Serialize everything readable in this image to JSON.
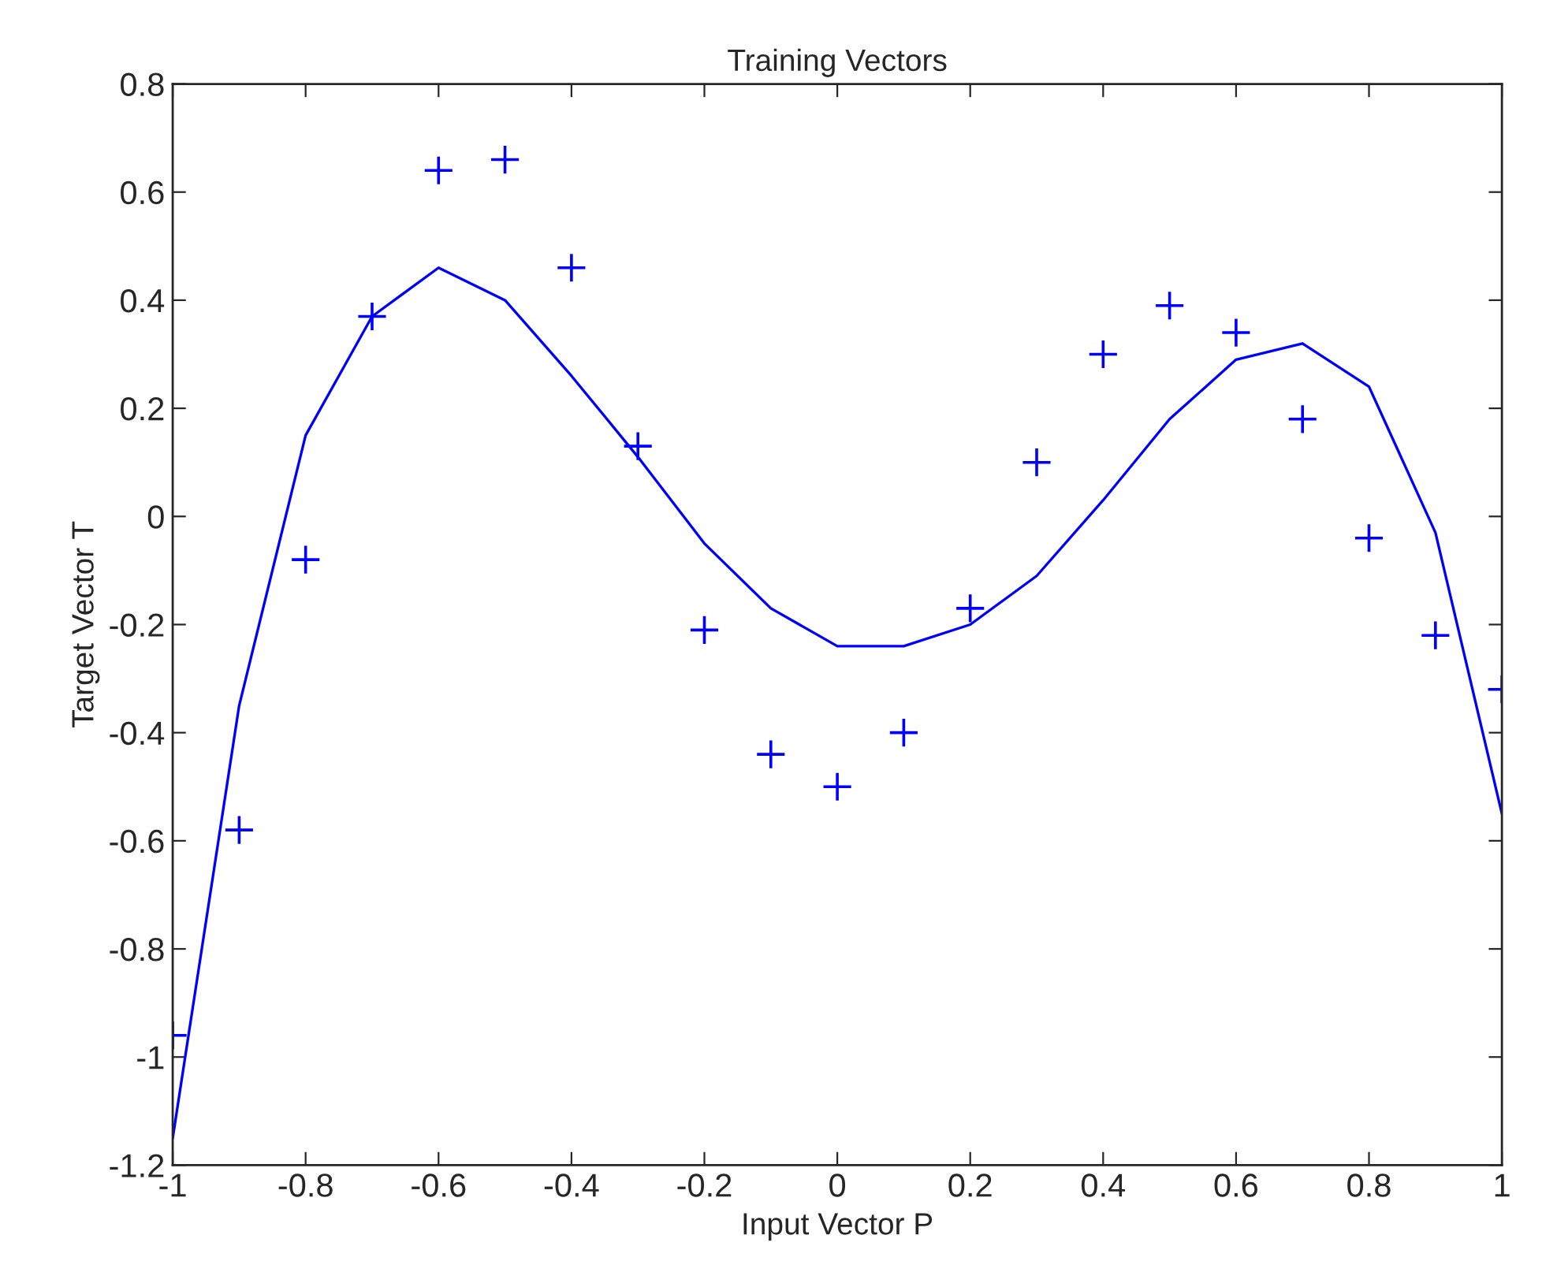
{
  "chart_data": {
    "type": "scatter",
    "title": "Training Vectors",
    "xlabel": "Input Vector P",
    "ylabel": "Target Vector T",
    "x": [
      -1,
      -0.9,
      -0.8,
      -0.7,
      -0.6,
      -0.5,
      -0.4,
      -0.3,
      -0.2,
      -0.1,
      0,
      0.1,
      0.2,
      0.3,
      0.4,
      0.5,
      0.6,
      0.7,
      0.8,
      0.9,
      1
    ],
    "series": [
      {
        "color": "#0000ff",
        "marker": "cross",
        "values": [
          -0.96,
          -0.58,
          -0.08,
          0.37,
          0.64,
          0.66,
          0.46,
          0.13,
          -0.21,
          -0.44,
          -0.5,
          -0.4,
          -0.17,
          0.1,
          0.3,
          0.39,
          0.34,
          0.18,
          -0.04,
          -0.22,
          -0.32
        ]
      },
      {
        "type": "line",
        "color": "#0000ff",
        "marker": "none",
        "values": [
          -1.15,
          -0.35,
          0.15,
          0.37,
          0.46,
          0.4,
          0.26,
          0.11,
          -0.05,
          -0.17,
          -0.24,
          -0.24,
          -0.2,
          -0.11,
          0.03,
          0.18,
          0.29,
          0.32,
          0.24,
          -0.03,
          -0.55
        ]
      }
    ],
    "xlim": [
      -1,
      1
    ],
    "xticks": [
      -1,
      -0.8,
      -0.6,
      -0.4,
      -0.2,
      0,
      0.2,
      0.4,
      0.6,
      0.8,
      1
    ],
    "ylim": [
      -1.2,
      0.8
    ],
    "yticks": [
      -1.2,
      -1,
      -0.8,
      -0.6,
      -0.4,
      -0.2,
      0,
      0.2,
      0.4,
      0.6,
      0.8
    ],
    "grid": false,
    "legend": false
  }
}
